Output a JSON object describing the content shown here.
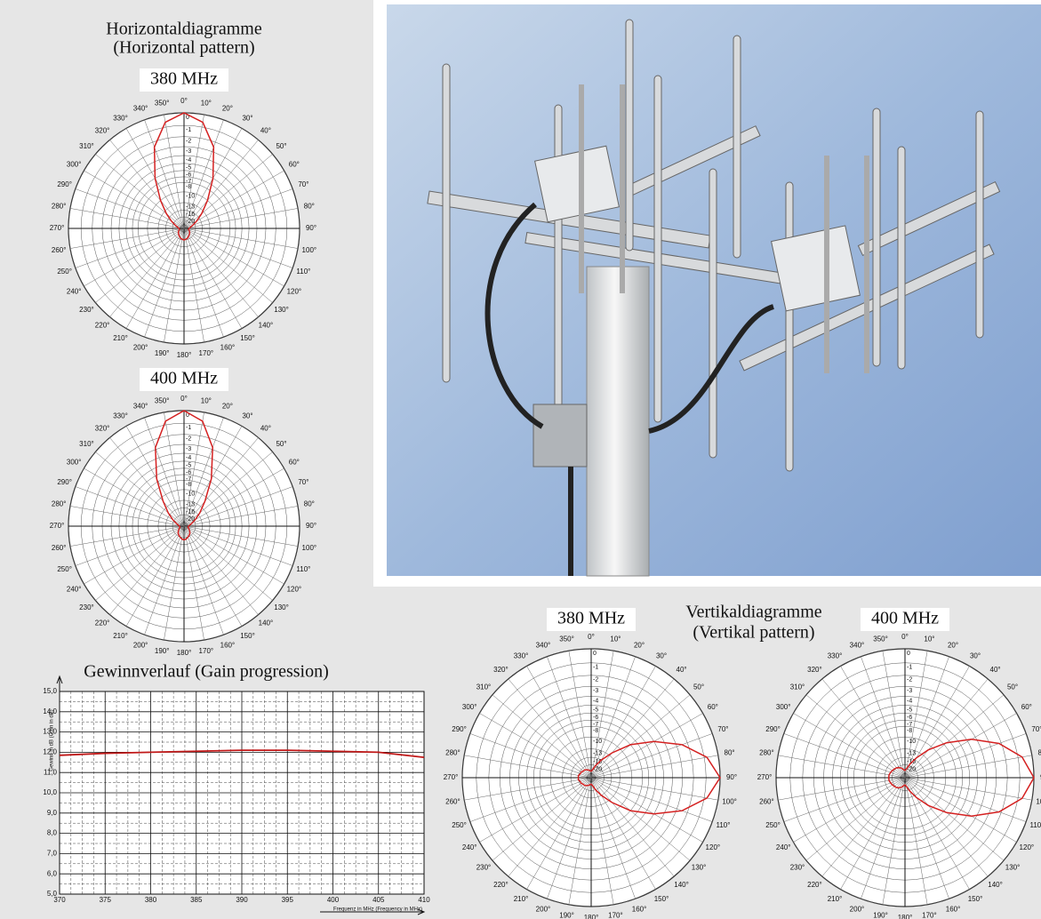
{
  "sections": {
    "horizontal": {
      "title": "Horizontaldiagramme",
      "subtitle": "(Horizontal pattern)"
    },
    "vertical": {
      "title": "Vertikaldiagramme",
      "subtitle": "(Vertikal pattern)"
    }
  },
  "chart_data": [
    {
      "type": "polar",
      "title": "380 MHz",
      "radial_scale": "voltage",
      "color": "#d42020",
      "theta": [
        0,
        10,
        20,
        30,
        40,
        50,
        60,
        70,
        80,
        90,
        100,
        110,
        120,
        130,
        140,
        150,
        160,
        170,
        180,
        190,
        200,
        210,
        220,
        230,
        240,
        250,
        260,
        270,
        280,
        290,
        300,
        310,
        320,
        330,
        340,
        350
      ],
      "values": [
        0,
        -0.6,
        -2.5,
        -6,
        -10,
        -14,
        -18,
        -22,
        -25,
        -27,
        -28,
        -27,
        -25,
        -24,
        -23,
        -22,
        -21,
        -20.5,
        -20,
        -20.5,
        -21,
        -22,
        -23,
        -24,
        -25,
        -27,
        -28,
        -27,
        -25,
        -22,
        -18,
        -14,
        -10,
        -6,
        -2.5,
        -0.6
      ],
      "rticks": [
        0,
        -1,
        -2,
        -3,
        -4,
        -5,
        -6,
        -7,
        -8,
        -10,
        -13,
        -16,
        -20,
        -30
      ],
      "angle_ticks": [
        {
          "value": 0,
          "label": "0°"
        },
        {
          "value": 10,
          "label": "10°"
        },
        {
          "value": 20,
          "label": "20°"
        },
        {
          "value": 30,
          "label": "30°"
        },
        {
          "value": 40,
          "label": "40°"
        },
        {
          "value": 50,
          "label": "50°"
        },
        {
          "value": 60,
          "label": "60°"
        },
        {
          "value": 70,
          "label": "70°"
        },
        {
          "value": 80,
          "label": "80°"
        },
        {
          "value": 90,
          "label": "90°"
        },
        {
          "value": 100,
          "label": "100°"
        },
        {
          "value": 110,
          "label": "110°"
        },
        {
          "value": 120,
          "label": "120°"
        },
        {
          "value": 130,
          "label": "130°"
        },
        {
          "value": 140,
          "label": "140°"
        },
        {
          "value": 150,
          "label": "150°"
        },
        {
          "value": 160,
          "label": "160°"
        },
        {
          "value": 170,
          "label": "170°"
        },
        {
          "value": 180,
          "label": "180°"
        },
        {
          "value": 190,
          "label": "190°"
        },
        {
          "value": 200,
          "label": "200°"
        },
        {
          "value": 210,
          "label": "210°"
        },
        {
          "value": 220,
          "label": "220°"
        },
        {
          "value": 230,
          "label": "230°"
        },
        {
          "value": 240,
          "label": "240°"
        },
        {
          "value": 250,
          "label": "250°"
        },
        {
          "value": 260,
          "label": "260°"
        },
        {
          "value": 270,
          "label": "270°"
        },
        {
          "value": 280,
          "label": "280°"
        },
        {
          "value": 290,
          "label": "290°"
        },
        {
          "value": 300,
          "label": "300°"
        },
        {
          "value": 310,
          "label": "310°"
        },
        {
          "value": 320,
          "label": "320°"
        },
        {
          "value": 330,
          "label": "330°"
        },
        {
          "value": 340,
          "label": "340°"
        },
        {
          "value": 350,
          "label": "350°"
        }
      ]
    },
    {
      "type": "polar",
      "title": "400 MHz",
      "radial_scale": "voltage",
      "color": "#d42020",
      "theta": [
        0,
        10,
        20,
        30,
        40,
        50,
        60,
        70,
        80,
        90,
        100,
        110,
        120,
        130,
        140,
        150,
        160,
        170,
        180,
        190,
        200,
        210,
        220,
        230,
        240,
        250,
        260,
        270,
        280,
        290,
        300,
        310,
        320,
        330,
        340,
        350
      ],
      "values": [
        0,
        -0.7,
        -2.8,
        -6.5,
        -11,
        -15,
        -19,
        -23,
        -26,
        -28,
        -29,
        -28,
        -26,
        -24,
        -22,
        -21,
        -20,
        -19,
        -18.5,
        -19,
        -20,
        -21,
        -22,
        -24,
        -26,
        -28,
        -29,
        -28,
        -26,
        -23,
        -19,
        -15,
        -11,
        -6.5,
        -2.8,
        -0.7
      ],
      "rticks": [
        0,
        -1,
        -2,
        -3,
        -4,
        -5,
        -6,
        -7,
        -8,
        -10,
        -13,
        -16,
        -20,
        -30
      ],
      "angle_ticks": [
        {
          "value": 0,
          "label": "0°"
        },
        {
          "value": 10,
          "label": "10°"
        },
        {
          "value": 20,
          "label": "20°"
        },
        {
          "value": 30,
          "label": "30°"
        },
        {
          "value": 40,
          "label": "40°"
        },
        {
          "value": 50,
          "label": "50°"
        },
        {
          "value": 60,
          "label": "60°"
        },
        {
          "value": 70,
          "label": "70°"
        },
        {
          "value": 80,
          "label": "80°"
        },
        {
          "value": 90,
          "label": "90°"
        },
        {
          "value": 100,
          "label": "100°"
        },
        {
          "value": 110,
          "label": "110°"
        },
        {
          "value": 120,
          "label": "120°"
        },
        {
          "value": 130,
          "label": "130°"
        },
        {
          "value": 140,
          "label": "140°"
        },
        {
          "value": 150,
          "label": "150°"
        },
        {
          "value": 160,
          "label": "160°"
        },
        {
          "value": 170,
          "label": "170°"
        },
        {
          "value": 180,
          "label": "180°"
        },
        {
          "value": 190,
          "label": "190°"
        },
        {
          "value": 200,
          "label": "200°"
        },
        {
          "value": 210,
          "label": "210°"
        },
        {
          "value": 220,
          "label": "220°"
        },
        {
          "value": 230,
          "label": "230°"
        },
        {
          "value": 240,
          "label": "240°"
        },
        {
          "value": 250,
          "label": "250°"
        },
        {
          "value": 260,
          "label": "260°"
        },
        {
          "value": 270,
          "label": "270°"
        },
        {
          "value": 280,
          "label": "280°"
        },
        {
          "value": 290,
          "label": "290°"
        },
        {
          "value": 300,
          "label": "300°"
        },
        {
          "value": 310,
          "label": "310°"
        },
        {
          "value": 320,
          "label": "320°"
        },
        {
          "value": 330,
          "label": "330°"
        },
        {
          "value": 340,
          "label": "340°"
        },
        {
          "value": 350,
          "label": "350°"
        }
      ]
    },
    {
      "type": "line",
      "title": "Gewinnverlauf (Gain progression)",
      "x_label": "Frequenz in MHz (Frequency in MHz)",
      "y_label": "Gewinn in dB (Gain in dB)",
      "color": "#c01818",
      "grid": true,
      "x": [
        370,
        375,
        380,
        385,
        390,
        395,
        400,
        405,
        410
      ],
      "values": [
        11.85,
        11.95,
        12.0,
        12.05,
        12.1,
        12.1,
        12.05,
        12.0,
        11.75
      ],
      "xlim": [
        370,
        410
      ],
      "xticks": [
        370,
        375,
        380,
        385,
        390,
        395,
        400,
        405,
        410
      ],
      "ylim": [
        5,
        15
      ],
      "yticks": [
        {
          "value": 5,
          "label": "5,0"
        },
        {
          "value": 6,
          "label": "6,0"
        },
        {
          "value": 7,
          "label": "7,0"
        },
        {
          "value": 8,
          "label": "8,0"
        },
        {
          "value": 9,
          "label": "9,0"
        },
        {
          "value": 10,
          "label": "10,0"
        },
        {
          "value": 11,
          "label": "11,0"
        },
        {
          "value": 12,
          "label": "12,0"
        },
        {
          "value": 13,
          "label": "13,0"
        },
        {
          "value": 14,
          "label": "14,0"
        },
        {
          "value": 15,
          "label": "15,0"
        }
      ]
    },
    {
      "type": "polar",
      "title": "380 MHz",
      "radial_scale": "voltage",
      "color": "#d42020",
      "theta": [
        0,
        10,
        20,
        30,
        40,
        50,
        60,
        70,
        80,
        90,
        100,
        110,
        120,
        130,
        140,
        150,
        160,
        170,
        180,
        190,
        200,
        210,
        220,
        230,
        240,
        250,
        260,
        270,
        280,
        290,
        300,
        310,
        320,
        330,
        340,
        350
      ],
      "values": [
        -26,
        -24,
        -20,
        -16,
        -12,
        -8,
        -5,
        -2.5,
        -0.8,
        0,
        -0.8,
        -2.5,
        -5,
        -8,
        -12,
        -16,
        -20,
        -24,
        -26,
        -25,
        -24,
        -23,
        -22,
        -22,
        -21,
        -21,
        -20,
        -20,
        -20,
        -21,
        -21,
        -22,
        -22,
        -23,
        -24,
        -25
      ],
      "rticks": [
        0,
        -1,
        -2,
        -3,
        -4,
        -5,
        -6,
        -7,
        -8,
        -10,
        -13,
        -16,
        -20,
        -30
      ],
      "angle_ticks": [
        {
          "value": 0,
          "label": "0°"
        },
        {
          "value": 10,
          "label": "10°"
        },
        {
          "value": 20,
          "label": "20°"
        },
        {
          "value": 30,
          "label": "30°"
        },
        {
          "value": 40,
          "label": "40°"
        },
        {
          "value": 50,
          "label": "50°"
        },
        {
          "value": 60,
          "label": "60°"
        },
        {
          "value": 70,
          "label": "70°"
        },
        {
          "value": 80,
          "label": "80°"
        },
        {
          "value": 90,
          "label": "90°"
        },
        {
          "value": 100,
          "label": "100°"
        },
        {
          "value": 110,
          "label": "110°"
        },
        {
          "value": 120,
          "label": "120°"
        },
        {
          "value": 130,
          "label": "130°"
        },
        {
          "value": 140,
          "label": "140°"
        },
        {
          "value": 150,
          "label": "150°"
        },
        {
          "value": 160,
          "label": "160°"
        },
        {
          "value": 170,
          "label": "170°"
        },
        {
          "value": 180,
          "label": "180°"
        },
        {
          "value": 190,
          "label": "190°"
        },
        {
          "value": 200,
          "label": "200°"
        },
        {
          "value": 210,
          "label": "210°"
        },
        {
          "value": 220,
          "label": "220°"
        },
        {
          "value": 230,
          "label": "230°"
        },
        {
          "value": 240,
          "label": "240°"
        },
        {
          "value": 250,
          "label": "250°"
        },
        {
          "value": 260,
          "label": "260°"
        },
        {
          "value": 270,
          "label": "270°"
        },
        {
          "value": 280,
          "label": "280°"
        },
        {
          "value": 290,
          "label": "290°"
        },
        {
          "value": 300,
          "label": "300°"
        },
        {
          "value": 310,
          "label": "310°"
        },
        {
          "value": 320,
          "label": "320°"
        },
        {
          "value": 330,
          "label": "330°"
        },
        {
          "value": 340,
          "label": "340°"
        },
        {
          "value": 350,
          "label": "350°"
        }
      ]
    },
    {
      "type": "polar",
      "title": "400 MHz",
      "radial_scale": "voltage",
      "color": "#d42020",
      "theta": [
        0,
        10,
        20,
        30,
        40,
        50,
        60,
        70,
        80,
        90,
        100,
        110,
        120,
        130,
        140,
        150,
        160,
        170,
        180,
        190,
        200,
        210,
        220,
        230,
        240,
        250,
        260,
        270,
        280,
        290,
        300,
        310,
        320,
        330,
        340,
        350
      ],
      "values": [
        -25,
        -23,
        -19,
        -15,
        -11,
        -7.5,
        -4.5,
        -2.2,
        -0.7,
        0,
        -0.7,
        -2.2,
        -4.5,
        -7.5,
        -11,
        -15,
        -19,
        -23,
        -25,
        -24,
        -22,
        -21,
        -20,
        -19.5,
        -19,
        -18.5,
        -18,
        -18,
        -18,
        -18.5,
        -19,
        -19.5,
        -20,
        -21,
        -22,
        -24
      ],
      "rticks": [
        0,
        -1,
        -2,
        -3,
        -4,
        -5,
        -6,
        -7,
        -8,
        -10,
        -13,
        -16,
        -20,
        -30
      ],
      "angle_ticks": [
        {
          "value": 0,
          "label": "0°"
        },
        {
          "value": 10,
          "label": "10°"
        },
        {
          "value": 20,
          "label": "20°"
        },
        {
          "value": 30,
          "label": "30°"
        },
        {
          "value": 40,
          "label": "40°"
        },
        {
          "value": 50,
          "label": "50°"
        },
        {
          "value": 60,
          "label": "60°"
        },
        {
          "value": 70,
          "label": "70°"
        },
        {
          "value": 80,
          "label": "80°"
        },
        {
          "value": 90,
          "label": "90°"
        },
        {
          "value": 100,
          "label": "100°"
        },
        {
          "value": 110,
          "label": "110°"
        },
        {
          "value": 120,
          "label": "120°"
        },
        {
          "value": 130,
          "label": "130°"
        },
        {
          "value": 140,
          "label": "140°"
        },
        {
          "value": 150,
          "label": "150°"
        },
        {
          "value": 160,
          "label": "160°"
        },
        {
          "value": 170,
          "label": "170°"
        },
        {
          "value": 180,
          "label": "180°"
        },
        {
          "value": 190,
          "label": "190°"
        },
        {
          "value": 200,
          "label": "200°"
        },
        {
          "value": 210,
          "label": "210°"
        },
        {
          "value": 220,
          "label": "220°"
        },
        {
          "value": 230,
          "label": "230°"
        },
        {
          "value": 240,
          "label": "240°"
        },
        {
          "value": 250,
          "label": "250°"
        },
        {
          "value": 260,
          "label": "260°"
        },
        {
          "value": 270,
          "label": "270°"
        },
        {
          "value": 280,
          "label": "280°"
        },
        {
          "value": 290,
          "label": "290°"
        },
        {
          "value": 300,
          "label": "300°"
        },
        {
          "value": 310,
          "label": "310°"
        },
        {
          "value": 320,
          "label": "320°"
        },
        {
          "value": 330,
          "label": "330°"
        },
        {
          "value": 340,
          "label": "340°"
        },
        {
          "value": 350,
          "label": "350°"
        }
      ]
    }
  ]
}
